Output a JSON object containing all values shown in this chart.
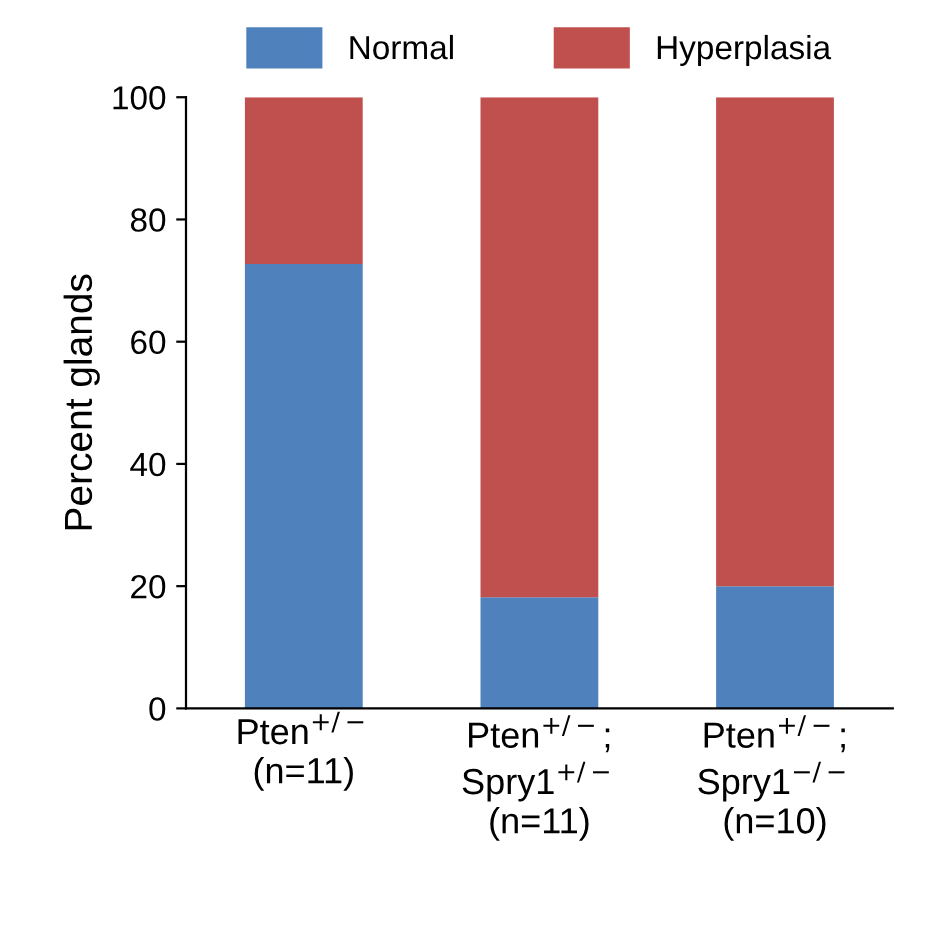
{
  "chart_data": {
    "type": "bar",
    "stacked": true,
    "ylabel": "Percent glands",
    "categories": [
      "Pten$^{+/−}$\n(n=11)",
      "Pten$^{+/−}$;\nSpry1$^{+/−}$\n(n=11)",
      "Pten$^{+/−}$;\nSpry1$^{−/−}$\n(n=10)"
    ],
    "series": [
      {
        "name": "Normal",
        "color": "#4f81bd",
        "values": [
          72.7,
          18.2,
          20
        ]
      },
      {
        "name": "Hyperplasia",
        "color": "#c0504d",
        "values": [
          27.3,
          81.8,
          80
        ]
      }
    ],
    "ylim": [
      0,
      100
    ],
    "yticks": [
      0,
      20,
      40,
      60,
      80,
      100
    ],
    "grid": false,
    "legend": "top"
  }
}
